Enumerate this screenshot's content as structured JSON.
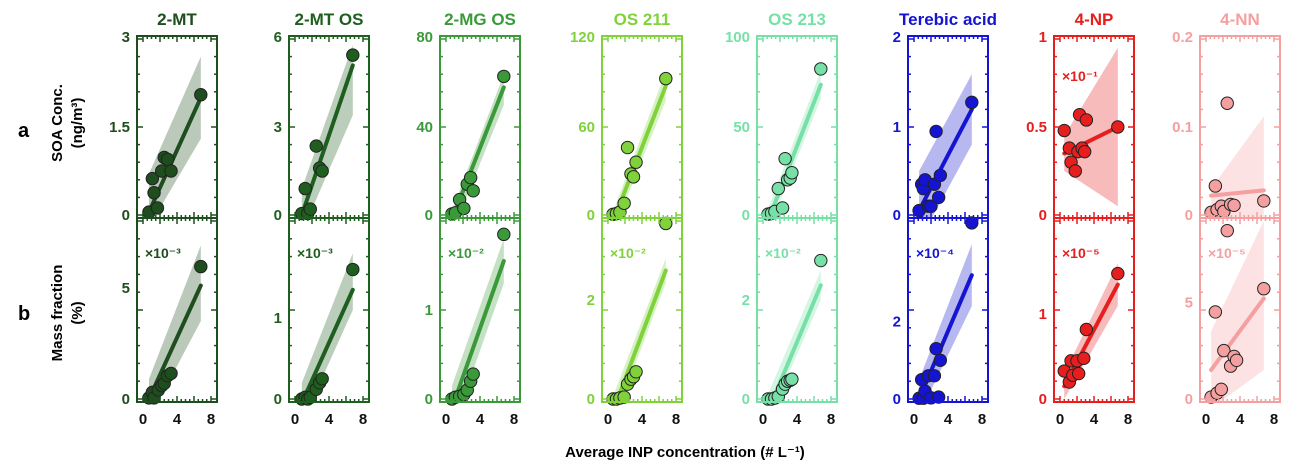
{
  "figure": {
    "row_letters": [
      "a",
      "b"
    ],
    "ylabel_a": [
      "SOA Conc.",
      "(ng/m³)"
    ],
    "ylabel_b": [
      "Mass fraction",
      "(%)"
    ],
    "xlabel": "Average INP concentration (# L⁻¹)"
  },
  "chart_data": [
    {
      "type": "scatter",
      "title": "2-MT",
      "color": "#1e4d1e",
      "row": "a",
      "xlim": [
        0,
        8
      ],
      "ylim": [
        0,
        3
      ],
      "yticks": [
        "0",
        "1.5",
        "3"
      ],
      "xticks": [
        "0",
        "4",
        "8"
      ],
      "multiplier": "",
      "points": [
        [
          0.7,
          0.05
        ],
        [
          1.1,
          0.62
        ],
        [
          1.3,
          0.38
        ],
        [
          1.7,
          0.12
        ],
        [
          2.2,
          0.75
        ],
        [
          2.5,
          0.98
        ],
        [
          2.9,
          0.95
        ],
        [
          3.3,
          0.75
        ],
        [
          6.8,
          2.05
        ]
      ],
      "fit": [
        [
          0.7,
          0.05
        ],
        [
          6.8,
          2.0
        ]
      ],
      "band": [
        [
          0.7,
          0.7,
          -0.2
        ],
        [
          6.8,
          2.7,
          1.3
        ]
      ]
    },
    {
      "type": "scatter",
      "title": "2-MT OS",
      "color": "#1e5e1e",
      "row": "a",
      "xlim": [
        0,
        8
      ],
      "ylim": [
        0,
        6
      ],
      "yticks": [
        "0",
        "3",
        "6"
      ],
      "xticks": [
        "0",
        "4",
        "8"
      ],
      "multiplier": "",
      "points": [
        [
          0.8,
          0.05
        ],
        [
          1.2,
          0.9
        ],
        [
          1.5,
          0.05
        ],
        [
          1.8,
          0.2
        ],
        [
          2.5,
          2.35
        ],
        [
          2.9,
          1.6
        ],
        [
          3.2,
          1.5
        ],
        [
          6.8,
          5.45
        ]
      ],
      "fit": [
        [
          0.8,
          0.0
        ],
        [
          6.8,
          5.1
        ]
      ],
      "band": [
        [
          0.8,
          0.9,
          -0.6
        ],
        [
          6.8,
          5.8,
          3.4
        ]
      ]
    },
    {
      "type": "scatter",
      "title": "2-MG OS",
      "color": "#3a9a3a",
      "row": "a",
      "xlim": [
        0,
        8
      ],
      "ylim": [
        0,
        80
      ],
      "yticks": [
        "0",
        "40",
        "80"
      ],
      "xticks": [
        "0",
        "4",
        "8"
      ],
      "multiplier": "",
      "points": [
        [
          0.7,
          0.5
        ],
        [
          1.1,
          1.0
        ],
        [
          1.6,
          7.0
        ],
        [
          2.1,
          3.0
        ],
        [
          2.5,
          14.0
        ],
        [
          2.9,
          17.0
        ],
        [
          3.2,
          11.0
        ],
        [
          6.8,
          63.0
        ]
      ],
      "fit": [
        [
          0.7,
          -2.0
        ],
        [
          6.8,
          58.0
        ]
      ],
      "band": [
        [
          0.7,
          2.0,
          -8.0
        ],
        [
          6.8,
          64.0,
          50.0
        ]
      ]
    },
    {
      "type": "scatter",
      "title": "OS 211",
      "color": "#7fd23a",
      "row": "a",
      "xlim": [
        0,
        8
      ],
      "ylim": [
        0,
        120
      ],
      "yticks": [
        "0",
        "60",
        "120"
      ],
      "xticks": [
        "0",
        "4",
        "8"
      ],
      "multiplier": "",
      "points": [
        [
          0.6,
          0.5
        ],
        [
          1.0,
          1.0
        ],
        [
          1.4,
          2.0
        ],
        [
          1.9,
          8.0
        ],
        [
          2.3,
          46.0
        ],
        [
          2.7,
          28.0
        ],
        [
          3.0,
          26.0
        ],
        [
          3.3,
          36.0
        ],
        [
          6.8,
          93.0
        ]
      ],
      "fit": [
        [
          0.7,
          -3.0
        ],
        [
          6.8,
          88.0
        ]
      ],
      "band": [
        [
          0.7,
          4.0,
          -10.0
        ],
        [
          6.8,
          98.0,
          78.0
        ]
      ]
    },
    {
      "type": "scatter",
      "title": "OS 213",
      "color": "#76e0a6",
      "row": "a",
      "xlim": [
        0,
        8
      ],
      "ylim": [
        0,
        100
      ],
      "yticks": [
        "0",
        "50",
        "100"
      ],
      "xticks": [
        "0",
        "4",
        "8"
      ],
      "multiplier": "",
      "points": [
        [
          0.6,
          0.5
        ],
        [
          1.0,
          1.0
        ],
        [
          1.4,
          2.0
        ],
        [
          1.8,
          15.0
        ],
        [
          2.3,
          4.0
        ],
        [
          2.6,
          32.0
        ],
        [
          2.9,
          20.0
        ],
        [
          3.2,
          21.0
        ],
        [
          3.4,
          24.0
        ],
        [
          6.8,
          83.0
        ]
      ],
      "fit": [
        [
          0.7,
          -2.0
        ],
        [
          6.8,
          74.0
        ]
      ],
      "band": [
        [
          0.7,
          5.0,
          -8.0
        ],
        [
          6.8,
          82.0,
          66.0
        ]
      ]
    },
    {
      "type": "scatter",
      "title": "Terebic acid",
      "color": "#1414d2",
      "row": "a",
      "xlim": [
        0,
        8
      ],
      "ylim": [
        0,
        2
      ],
      "yticks": [
        "0",
        "1",
        "2"
      ],
      "xticks": [
        "0",
        "4",
        "8"
      ],
      "multiplier": "",
      "points": [
        [
          0.6,
          0.05
        ],
        [
          0.9,
          0.35
        ],
        [
          1.1,
          0.3
        ],
        [
          1.3,
          0.4
        ],
        [
          1.7,
          0.1
        ],
        [
          2.0,
          0.1
        ],
        [
          2.4,
          0.35
        ],
        [
          2.6,
          0.95
        ],
        [
          2.9,
          0.2
        ],
        [
          3.1,
          0.45
        ],
        [
          6.8,
          1.28
        ]
      ],
      "fit": [
        [
          0.6,
          0.05
        ],
        [
          6.8,
          1.2
        ]
      ],
      "band": [
        [
          0.6,
          0.5,
          -0.3
        ],
        [
          6.8,
          1.6,
          0.8
        ]
      ]
    },
    {
      "type": "scatter",
      "title": "4-NP",
      "color": "#e61e1e",
      "row": "a",
      "xlim": [
        0,
        8
      ],
      "ylim": [
        0,
        1
      ],
      "yticks": [
        "0",
        "0.5",
        "1"
      ],
      "xticks": [
        "0",
        "4",
        "8"
      ],
      "multiplier": "×10⁻¹",
      "points": [
        [
          0.5,
          0.48
        ],
        [
          1.1,
          0.38
        ],
        [
          1.3,
          0.3
        ],
        [
          1.8,
          0.25
        ],
        [
          2.1,
          0.36
        ],
        [
          2.3,
          0.57
        ],
        [
          2.6,
          0.38
        ],
        [
          2.9,
          0.36
        ],
        [
          3.1,
          0.54
        ],
        [
          6.8,
          0.5
        ]
      ],
      "fit": [
        [
          0.5,
          0.35
        ],
        [
          6.8,
          0.5
        ]
      ],
      "band": [
        [
          0.5,
          0.45,
          0.25
        ],
        [
          6.8,
          0.95,
          0.05
        ]
      ]
    },
    {
      "type": "scatter",
      "title": "4-NN",
      "color": "#f5a0a0",
      "row": "a",
      "xlim": [
        0,
        8
      ],
      "ylim": [
        0,
        0.2
      ],
      "yticks": [
        "0",
        "0.1",
        "0.2"
      ],
      "xticks": [
        "0",
        "4",
        "8"
      ],
      "multiplier": "",
      "points": [
        [
          0.6,
          0.003
        ],
        [
          1.1,
          0.033
        ],
        [
          1.3,
          0.006
        ],
        [
          1.8,
          0.01
        ],
        [
          2.1,
          0.004
        ],
        [
          2.5,
          0.127
        ],
        [
          2.9,
          0.012
        ],
        [
          3.3,
          0.011
        ],
        [
          6.8,
          0.016
        ]
      ],
      "fit": [
        [
          0.6,
          0.022
        ],
        [
          6.8,
          0.028
        ]
      ],
      "band": [
        [
          0.6,
          0.03,
          0.01
        ],
        [
          6.8,
          0.112,
          -0.05
        ]
      ]
    },
    {
      "type": "scatter",
      "title": "",
      "color": "#1e4d1e",
      "row": "b",
      "xlim": [
        0,
        8
      ],
      "ylim": [
        0,
        8
      ],
      "yticks": [
        "0",
        "5"
      ],
      "xticks": [
        "0",
        "4",
        "8"
      ],
      "multiplier": "×10⁻³",
      "points": [
        [
          0.7,
          0.05
        ],
        [
          1.1,
          0.3
        ],
        [
          1.3,
          0.05
        ],
        [
          1.8,
          0.4
        ],
        [
          2.2,
          0.6
        ],
        [
          2.5,
          0.7
        ],
        [
          2.9,
          1.05
        ],
        [
          3.3,
          1.15
        ],
        [
          6.8,
          5.95
        ]
      ],
      "fit": [
        [
          0.7,
          0.0
        ],
        [
          6.8,
          5.1
        ]
      ],
      "band": [
        [
          0.7,
          0.9,
          -0.9
        ],
        [
          6.8,
          6.9,
          3.5
        ]
      ]
    },
    {
      "type": "scatter",
      "title": "",
      "color": "#1e5e1e",
      "row": "b",
      "xlim": [
        0,
        8
      ],
      "ylim": [
        0,
        2.2
      ],
      "yticks": [
        "0",
        "1"
      ],
      "xticks": [
        "0",
        "4",
        "8"
      ],
      "multiplier": "×10⁻³",
      "points": [
        [
          0.8,
          0.0
        ],
        [
          1.2,
          0.02
        ],
        [
          1.5,
          0.0
        ],
        [
          1.8,
          0.02
        ],
        [
          2.5,
          0.12
        ],
        [
          2.9,
          0.2
        ],
        [
          3.2,
          0.25
        ],
        [
          6.8,
          1.6
        ]
      ],
      "fit": [
        [
          0.8,
          -0.05
        ],
        [
          6.8,
          1.35
        ]
      ],
      "band": [
        [
          0.8,
          0.2,
          -0.3
        ],
        [
          6.8,
          1.8,
          1.1
        ]
      ]
    },
    {
      "type": "scatter",
      "title": "",
      "color": "#3a9a3a",
      "row": "b",
      "xlim": [
        0,
        8
      ],
      "ylim": [
        0,
        2.0
      ],
      "yticks": [
        "0",
        "1"
      ],
      "xticks": [
        "0",
        "4",
        "8"
      ],
      "multiplier": "×10⁻²",
      "points": [
        [
          0.7,
          0.0
        ],
        [
          1.1,
          0.02
        ],
        [
          1.6,
          0.03
        ],
        [
          2.1,
          0.05
        ],
        [
          2.5,
          0.1
        ],
        [
          2.9,
          0.2
        ],
        [
          3.2,
          0.28
        ],
        [
          6.8,
          1.85
        ]
      ],
      "fit": [
        [
          0.7,
          -0.1
        ],
        [
          6.8,
          1.55
        ]
      ],
      "band": [
        [
          0.7,
          0.15,
          -0.35
        ],
        [
          6.8,
          1.8,
          1.3
        ]
      ]
    },
    {
      "type": "scatter",
      "title": "",
      "color": "#7fd23a",
      "row": "b",
      "xlim": [
        0,
        8
      ],
      "ylim": [
        0,
        3.6
      ],
      "yticks": [
        "0",
        "2"
      ],
      "xticks": [
        "0",
        "4",
        "8"
      ],
      "multiplier": "×10⁻²",
      "points": [
        [
          0.6,
          0.0
        ],
        [
          1.0,
          0.0
        ],
        [
          1.4,
          0.02
        ],
        [
          1.9,
          0.04
        ],
        [
          2.3,
          0.3
        ],
        [
          2.7,
          0.4
        ],
        [
          3.0,
          0.45
        ],
        [
          3.3,
          0.55
        ],
        [
          6.8,
          3.55
        ]
      ],
      "fit": [
        [
          0.7,
          -0.2
        ],
        [
          6.8,
          2.6
        ]
      ],
      "band": [
        [
          0.7,
          0.1,
          -0.45
        ],
        [
          6.8,
          2.85,
          2.35
        ]
      ]
    },
    {
      "type": "scatter",
      "title": "",
      "color": "#76e0a6",
      "row": "b",
      "xlim": [
        0,
        8
      ],
      "ylim": [
        0,
        3.6
      ],
      "yticks": [
        "0",
        "2"
      ],
      "xticks": [
        "0",
        "4",
        "8"
      ],
      "multiplier": "×10⁻²",
      "points": [
        [
          0.6,
          0.0
        ],
        [
          1.0,
          0.0
        ],
        [
          1.4,
          0.02
        ],
        [
          1.8,
          0.05
        ],
        [
          2.3,
          0.2
        ],
        [
          2.6,
          0.3
        ],
        [
          2.9,
          0.36
        ],
        [
          3.2,
          0.38
        ],
        [
          3.4,
          0.4
        ],
        [
          6.8,
          2.8
        ]
      ],
      "fit": [
        [
          0.7,
          -0.2
        ],
        [
          6.8,
          2.3
        ]
      ],
      "band": [
        [
          0.7,
          0.15,
          -0.4
        ],
        [
          6.8,
          2.6,
          2.0
        ]
      ]
    },
    {
      "type": "scatter",
      "title": "",
      "color": "#1414d2",
      "row": "b",
      "xlim": [
        0,
        8
      ],
      "ylim": [
        0,
        4.6
      ],
      "yticks": [
        "0",
        "2"
      ],
      "xticks": [
        "0",
        "4",
        "8"
      ],
      "multiplier": "×10⁻⁴",
      "points": [
        [
          0.6,
          0.02
        ],
        [
          0.9,
          0.5
        ],
        [
          1.1,
          0.02
        ],
        [
          1.3,
          0.2
        ],
        [
          1.7,
          0.6
        ],
        [
          2.0,
          0.03
        ],
        [
          2.4,
          0.6
        ],
        [
          2.6,
          1.3
        ],
        [
          2.9,
          0.05
        ],
        [
          3.1,
          1.0
        ],
        [
          6.8,
          4.55
        ]
      ],
      "fit": [
        [
          0.6,
          0.0
        ],
        [
          6.8,
          3.2
        ]
      ],
      "band": [
        [
          0.6,
          0.5,
          -0.4
        ],
        [
          6.8,
          4.0,
          2.4
        ]
      ]
    },
    {
      "type": "scatter",
      "title": "",
      "color": "#e61e1e",
      "row": "b",
      "xlim": [
        0,
        8
      ],
      "ylim": [
        0,
        2.1
      ],
      "yticks": [
        "0",
        "1"
      ],
      "xticks": [
        "0",
        "4",
        "8"
      ],
      "multiplier": "×10⁻⁵",
      "points": [
        [
          0.5,
          0.33
        ],
        [
          1.1,
          0.2
        ],
        [
          1.3,
          0.45
        ],
        [
          1.5,
          0.28
        ],
        [
          2.0,
          0.45
        ],
        [
          2.2,
          0.3
        ],
        [
          2.8,
          0.48
        ],
        [
          3.1,
          0.82
        ],
        [
          6.8,
          1.48
        ]
      ],
      "fit": [
        [
          0.5,
          0.15
        ],
        [
          6.8,
          1.35
        ]
      ],
      "band": [
        [
          0.5,
          0.3,
          0.0
        ],
        [
          6.8,
          1.6,
          1.1
        ]
      ]
    },
    {
      "type": "scatter",
      "title": "",
      "color": "#f5a0a0",
      "row": "b",
      "xlim": [
        0,
        8
      ],
      "ylim": [
        0,
        9.2
      ],
      "yticks": [
        "0",
        "5"
      ],
      "xticks": [
        "0",
        "4",
        "8"
      ],
      "multiplier": "×10⁻⁵",
      "points": [
        [
          0.6,
          0.1
        ],
        [
          1.1,
          4.5
        ],
        [
          1.3,
          0.3
        ],
        [
          1.8,
          0.5
        ],
        [
          2.1,
          2.5
        ],
        [
          2.5,
          8.7
        ],
        [
          2.9,
          1.7
        ],
        [
          3.3,
          2.2
        ],
        [
          3.6,
          2.0
        ],
        [
          6.8,
          5.7
        ]
      ],
      "fit": [
        [
          0.6,
          1.5
        ],
        [
          6.8,
          5.2
        ]
      ],
      "band": [
        [
          0.6,
          3.5,
          -0.5
        ],
        [
          6.8,
          9.2,
          1.5
        ]
      ]
    }
  ]
}
